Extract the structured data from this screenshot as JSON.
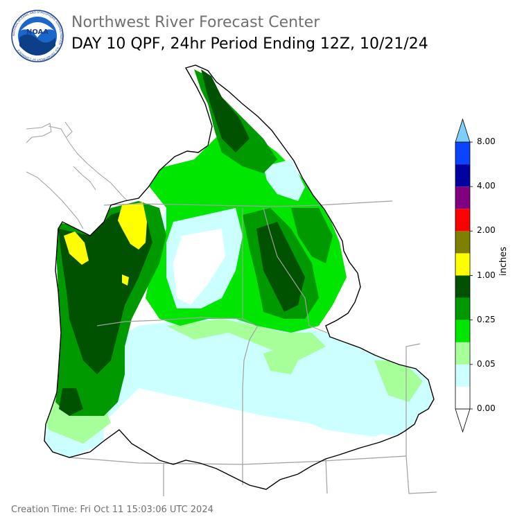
{
  "header": {
    "title_line1": "Northwest River Forecast Center",
    "title_line2": "DAY 10 QPF, 24hr Period Ending 12Z, 10/21/24",
    "logo_text": "NOAA",
    "logo_ring_text": "NATIONAL OCEANIC AND ATMOSPHERIC ADMINISTRATION · U.S. DEPARTMENT OF COMMERCE"
  },
  "legend": {
    "units": "inches",
    "tick_labels": [
      "0.00",
      "0.05",
      "0.25",
      "1.00",
      "2.00",
      "4.00",
      "8.00"
    ],
    "bins": [
      {
        "color": "#ffffff"
      },
      {
        "color": "#ccffff"
      },
      {
        "color": "#a6ff99"
      },
      {
        "color": "#00e600"
      },
      {
        "color": "#009900"
      },
      {
        "color": "#005200"
      },
      {
        "color": "#ffff00"
      },
      {
        "color": "#808000"
      },
      {
        "color": "#ff0000"
      },
      {
        "color": "#800080"
      },
      {
        "color": "#0000a0"
      },
      {
        "color": "#0a44ff"
      }
    ],
    "overflow_color": "#7ccfff",
    "underflow_color": "#ffffff"
  },
  "footer": {
    "creation_time": "Creation Time: Fri Oct 11 15:03:06 UTC 2024"
  },
  "colors": {
    "basin_outline": "#000000",
    "state_lines": "#a0a0a0",
    "coast": "#a0a0a0"
  }
}
